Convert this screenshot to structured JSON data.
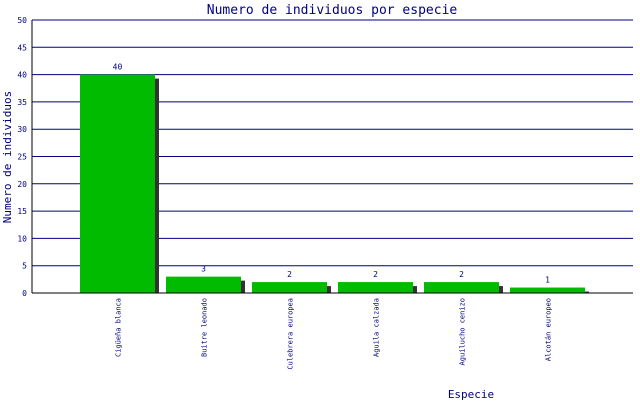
{
  "chart_data": {
    "type": "bar",
    "title": "Numero de individuos por especie",
    "xlabel": "Especie",
    "ylabel": "Numero de individuos",
    "categories": [
      "Cigüeña blanca",
      "Buitre leonado",
      "Culebrera europea",
      "Aguila calzada",
      "Aguilucho cenizo",
      "Alcotán europeo"
    ],
    "values": [
      40,
      3,
      2,
      2,
      2,
      1
    ],
    "ylim": [
      0,
      50
    ],
    "yticks": [
      0,
      5,
      10,
      15,
      20,
      25,
      30,
      35,
      40,
      45,
      50
    ],
    "grid": true,
    "legend": "none",
    "colors": {
      "bar": "#00bb00",
      "shadow": "#333333",
      "grid": "#000080",
      "text": "#000080",
      "axis": "#000000"
    }
  }
}
